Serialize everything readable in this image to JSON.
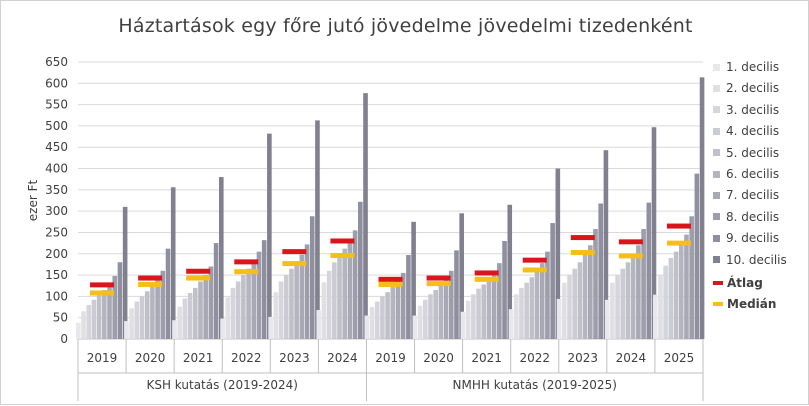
{
  "title": "Háztartások egy főre jutó jövedelme jövedelmi tizedenként",
  "colors": {
    "deciles": [
      "#e8e8ec",
      "#dfdfe4",
      "#d5d5dc",
      "#cbcbd3",
      "#c0c0ca",
      "#b5b5c0",
      "#a9a9b5",
      "#9d9dab",
      "#8f8fa0",
      "#80808f"
    ],
    "atlag": "#d9161b",
    "median": "#f5be1a",
    "grid": "#d9d9d9",
    "axis": "#bfbfbf"
  },
  "chart_data": {
    "type": "bar",
    "title": "Háztartások egy főre jutó jövedelme jövedelmi tizedenként",
    "ylabel": "ezer Ft",
    "ylim": [
      0,
      650
    ],
    "yticks": [
      0,
      50,
      100,
      150,
      200,
      250,
      300,
      350,
      400,
      450,
      500,
      550,
      600,
      650
    ],
    "grid": true,
    "legend_position": "right",
    "groups": [
      {
        "label": "KSH kutatás (2019-2024)",
        "categories": [
          "2019",
          "2020",
          "2021",
          "2022",
          "2023",
          "2024"
        ]
      },
      {
        "label": "NMHH kutatás (2019-2025)",
        "categories": [
          "2019",
          "2020",
          "2021",
          "2022",
          "2023",
          "2024",
          "2025"
        ]
      }
    ],
    "categories": [
      "2019",
      "2020",
      "2021",
      "2022",
      "2023",
      "2024",
      "2019",
      "2020",
      "2021",
      "2022",
      "2023",
      "2024",
      "2025"
    ],
    "series": [
      {
        "name": "1. decilis",
        "values": [
          38,
          42,
          44,
          48,
          52,
          68,
          55,
          55,
          64,
          70,
          94,
          92,
          104
        ]
      },
      {
        "name": "2. decilis",
        "values": [
          65,
          72,
          76,
          98,
          110,
          133,
          75,
          78,
          90,
          105,
          132,
          132,
          150
        ]
      },
      {
        "name": "3. decilis",
        "values": [
          80,
          88,
          95,
          120,
          135,
          160,
          88,
          92,
          105,
          120,
          150,
          150,
          172
        ]
      },
      {
        "name": "4. decilis",
        "values": [
          92,
          100,
          108,
          135,
          150,
          180,
          100,
          105,
          118,
          132,
          165,
          165,
          190
        ]
      },
      {
        "name": "5. decilis",
        "values": [
          102,
          112,
          120,
          150,
          165,
          195,
          110,
          115,
          128,
          145,
          180,
          180,
          205
        ]
      },
      {
        "name": "6. decilis",
        "values": [
          115,
          125,
          135,
          165,
          180,
          212,
          122,
          128,
          140,
          160,
          198,
          198,
          222
        ]
      },
      {
        "name": "7. decilis",
        "values": [
          128,
          140,
          150,
          182,
          198,
          232,
          135,
          140,
          155,
          178,
          220,
          220,
          245
        ]
      },
      {
        "name": "8. decilis",
        "values": [
          148,
          160,
          170,
          205,
          222,
          255,
          155,
          160,
          178,
          205,
          258,
          258,
          288
        ]
      },
      {
        "name": "9. decilis",
        "values": [
          180,
          212,
          225,
          232,
          288,
          322,
          197,
          208,
          230,
          272,
          318,
          320,
          388
        ]
      },
      {
        "name": "10. decilis",
        "values": [
          310,
          356,
          380,
          482,
          513,
          577,
          275,
          295,
          315,
          400,
          443,
          497,
          614
        ]
      }
    ],
    "markers": [
      {
        "name": "Átlag",
        "values": [
          127,
          143,
          159,
          181,
          205,
          230,
          140,
          143,
          155,
          185,
          238,
          228,
          265
        ]
      },
      {
        "name": "Medián",
        "values": [
          108,
          128,
          143,
          158,
          177,
          196,
          128,
          130,
          140,
          162,
          203,
          195,
          225
        ]
      }
    ]
  },
  "legend": {
    "items": [
      {
        "label": "1. decilis"
      },
      {
        "label": "2. decilis"
      },
      {
        "label": "3. decilis"
      },
      {
        "label": "4. decilis"
      },
      {
        "label": "5. decilis"
      },
      {
        "label": "6. decilis"
      },
      {
        "label": "7. decilis"
      },
      {
        "label": "8. decilis"
      },
      {
        "label": "9. decilis"
      },
      {
        "label": "10. decilis"
      }
    ],
    "atlag_label": "Átlag",
    "median_label": "Medián"
  }
}
